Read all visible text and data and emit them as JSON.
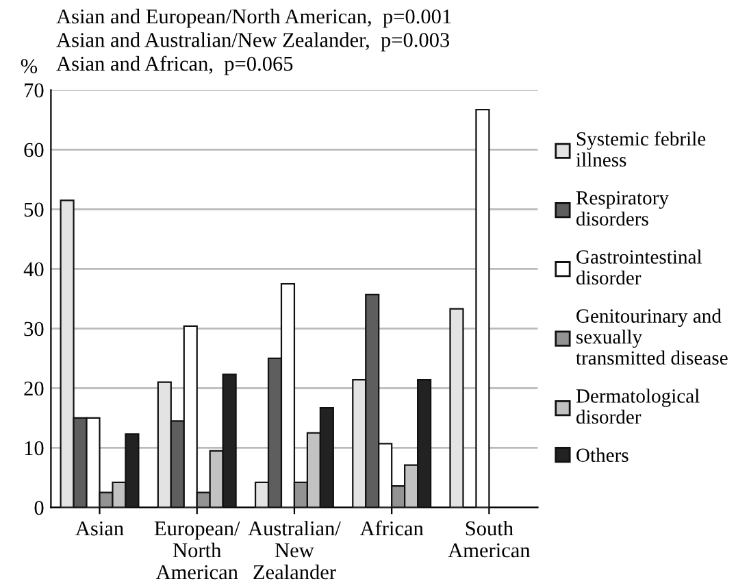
{
  "chart_data": {
    "type": "bar",
    "categories": [
      "Asian",
      "European/\nNorth\nAmerican",
      "Australian/\nNew\nZealander",
      "African",
      "South\nAmerican"
    ],
    "series": [
      {
        "name": "Systemic febrile\nillness",
        "color": "#e3e3e3",
        "values": [
          51.5,
          21,
          4.2,
          21.4,
          33.3
        ]
      },
      {
        "name": "Respiratory\ndisorders",
        "color": "#5e5e5e",
        "values": [
          15,
          14.5,
          25,
          35.7,
          null
        ]
      },
      {
        "name": "Gastrointestinal\ndisorder",
        "color": "#ffffff",
        "values": [
          15,
          30.4,
          37.5,
          10.7,
          66.7
        ]
      },
      {
        "name": "Genitourinary and\nsexually\ntransmitted disease",
        "color": "#939393",
        "values": [
          2.5,
          2.5,
          4.2,
          3.6,
          null
        ]
      },
      {
        "name": "Dermatological\ndisorder",
        "color": "#c2c2c2",
        "values": [
          4.2,
          9.5,
          12.5,
          7.1,
          null
        ]
      },
      {
        "name": "Others",
        "color": "#222222",
        "values": [
          12.3,
          22.3,
          16.7,
          21.4,
          null
        ]
      }
    ],
    "ylabel": "%",
    "ylim": [
      0,
      70
    ],
    "yticks": [
      0,
      10,
      20,
      30,
      40,
      50,
      60,
      70
    ],
    "grid": "y",
    "legend": "right",
    "annotations": [
      "Asian and European/North American,  p=0.001",
      "Asian and Australian/New Zealander,  p=0.003",
      "Asian and African,  p=0.065"
    ]
  }
}
